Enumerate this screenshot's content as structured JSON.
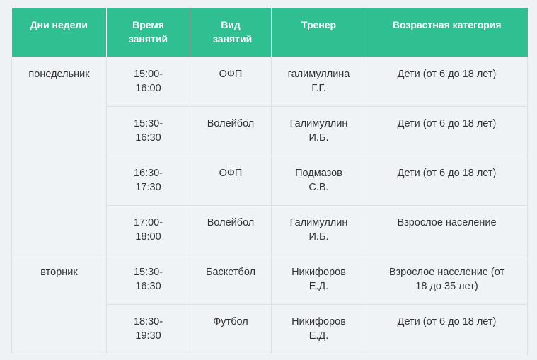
{
  "headers": [
    "Дни недели",
    "Время занятий",
    "Вид занятий",
    "Тренер",
    "Возрастная категория"
  ],
  "days": [
    {
      "day": "понедельник",
      "rows": [
        {
          "time": "15:00- 16:00",
          "type": "ОФП",
          "coach": "галимуллина Г.Г.",
          "age": "Дети (от 6 до 18 лет)"
        },
        {
          "time": "15:30- 16:30",
          "type": "Волейбол",
          "coach": "Галимуллин И.Б.",
          "age": "Дети (от 6 до 18 лет)"
        },
        {
          "time": "16:30- 17:30",
          "type": "ОФП",
          "coach": "Подмазов С.В.",
          "age": "Дети (от 6 до 18 лет)"
        },
        {
          "time": "17:00- 18:00",
          "type": "Волейбол",
          "coach": "Галимуллин И.Б.",
          "age": "Взрослое население"
        }
      ]
    },
    {
      "day": "вторник",
      "rows": [
        {
          "time": "15:30- 16:30",
          "type": "Баскетбол",
          "coach": "Никифоров Е.Д.",
          "age": "Взрослое население (от 18 до 35 лет)"
        },
        {
          "time": "18:30- 19:30",
          "type": "Футбол",
          "coach": "Никифоров Е.Д.",
          "age": "Дети (от 6 до 18 лет)"
        }
      ]
    }
  ],
  "colors": {
    "header": "#30bf91",
    "background": "#f0f3f6"
  }
}
